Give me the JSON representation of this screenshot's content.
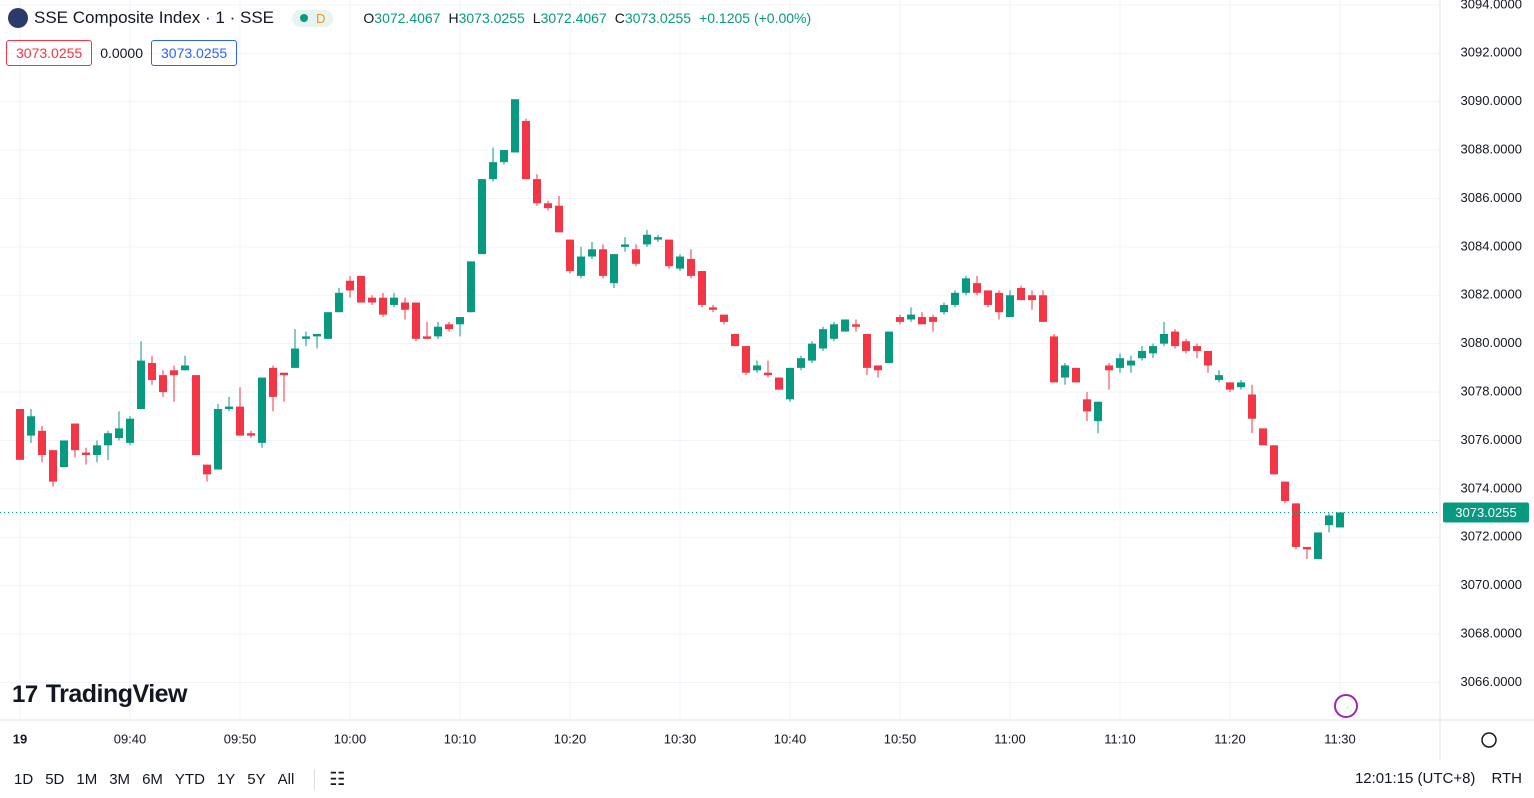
{
  "chart_data": {
    "type": "candlestick",
    "title": "SSE Composite Index · 1 · SSE",
    "status": "D",
    "legend": [
      {
        "label": "O",
        "value": 3072.4067
      },
      {
        "label": "H",
        "value": 3073.0255
      },
      {
        "label": "L",
        "value": 3072.4067
      },
      {
        "label": "C",
        "value": 3073.0255
      }
    ],
    "change_label": "+0.1205 (+0.00%)",
    "bid": "3073.0255",
    "spread": "0.0000",
    "ask": "3073.0255",
    "up_color": "#089981",
    "down_color": "#f23645",
    "x": [
      "09:30",
      "09:31",
      "09:32",
      "09:33",
      "09:34",
      "09:35",
      "09:36",
      "09:37",
      "09:38",
      "09:39",
      "09:40",
      "09:41",
      "09:42",
      "09:43",
      "09:44",
      "09:45",
      "09:46",
      "09:47",
      "09:48",
      "09:49",
      "09:50",
      "09:51",
      "09:52",
      "09:53",
      "09:54",
      "09:55",
      "09:56",
      "09:57",
      "09:58",
      "09:59",
      "10:00",
      "10:01",
      "10:02",
      "10:03",
      "10:04",
      "10:05",
      "10:06",
      "10:07",
      "10:08",
      "10:09",
      "10:10",
      "10:11",
      "10:12",
      "10:13",
      "10:14",
      "10:15",
      "10:16",
      "10:17",
      "10:18",
      "10:19",
      "10:20",
      "10:21",
      "10:22",
      "10:23",
      "10:24",
      "10:25",
      "10:26",
      "10:27",
      "10:28",
      "10:29",
      "10:30",
      "10:31",
      "10:32",
      "10:33",
      "10:34",
      "10:35",
      "10:36",
      "10:37",
      "10:38",
      "10:39",
      "10:40",
      "10:41",
      "10:42",
      "10:43",
      "10:44",
      "10:45",
      "10:46",
      "10:47",
      "10:48",
      "10:49",
      "10:50",
      "10:51",
      "10:52",
      "10:53",
      "10:54",
      "10:55",
      "10:56",
      "10:57",
      "10:58",
      "10:59",
      "11:00",
      "11:01",
      "11:02",
      "11:03",
      "11:04",
      "11:05",
      "11:06",
      "11:07",
      "11:08",
      "11:09",
      "11:10",
      "11:11",
      "11:12",
      "11:13",
      "11:14",
      "11:15",
      "11:16",
      "11:17",
      "11:18",
      "11:19",
      "11:20",
      "11:21",
      "11:22",
      "11:23",
      "11:24",
      "11:25",
      "11:26",
      "11:27",
      "11:28",
      "11:29",
      "11:30"
    ],
    "open": [
      3077.3,
      3076.2,
      3076.4,
      3075.6,
      3074.9,
      3076.7,
      3075.5,
      3075.4,
      3075.8,
      3076.1,
      3075.9,
      3077.3,
      3079.2,
      3078.7,
      3078.9,
      3078.9,
      3078.7,
      3075.0,
      3074.8,
      3077.3,
      3077.4,
      3076.3,
      3075.9,
      3079.0,
      3078.8,
      3079.0,
      3080.2,
      3080.3,
      3080.2,
      3081.3,
      3082.6,
      3082.8,
      3081.9,
      3081.9,
      3081.6,
      3081.7,
      3081.7,
      3080.3,
      3080.3,
      3080.8,
      3080.8,
      3081.3,
      3083.7,
      3086.8,
      3087.5,
      3087.9,
      3089.2,
      3086.8,
      3085.8,
      3085.7,
      3084.3,
      3082.8,
      3083.6,
      3083.9,
      3082.5,
      3084.0,
      3083.9,
      3084.1,
      3084.3,
      3084.3,
      3083.1,
      3083.5,
      3083.0,
      3081.5,
      3081.2,
      3080.4,
      3079.9,
      3078.9,
      3078.8,
      3078.6,
      3077.7,
      3079.0,
      3079.3,
      3079.8,
      3080.2,
      3080.5,
      3080.8,
      3080.4,
      3079.1,
      3079.2,
      3081.1,
      3081.0,
      3081.1,
      3081.1,
      3081.3,
      3081.6,
      3082.1,
      3082.5,
      3082.2,
      3082.1,
      3081.1,
      3082.3,
      3082.0,
      3082.0,
      3080.3,
      3078.6,
      3079.0,
      3077.7,
      3076.8,
      3079.1,
      3079.0,
      3079.1,
      3079.4,
      3079.6,
      3080.0,
      3080.5,
      3080.1,
      3079.9,
      3079.7,
      3078.5,
      3078.4,
      3078.2,
      3077.9,
      3076.5,
      3075.8,
      3074.3,
      3073.4,
      3071.6,
      3071.1,
      3072.5,
      3072.4067
    ],
    "high": [
      3077.3,
      3077.3,
      3076.6,
      3075.6,
      3076.0,
      3076.7,
      3075.7,
      3076.0,
      3076.4,
      3077.2,
      3077.0,
      3080.1,
      3079.5,
      3078.9,
      3079.1,
      3079.5,
      3078.7,
      3075.0,
      3077.5,
      3077.8,
      3078.2,
      3076.4,
      3078.6,
      3079.1,
      3078.8,
      3080.6,
      3080.5,
      3080.4,
      3081.3,
      3082.3,
      3082.8,
      3082.8,
      3082.0,
      3082.1,
      3082.1,
      3081.9,
      3081.7,
      3080.9,
      3080.9,
      3080.9,
      3081.1,
      3083.4,
      3086.8,
      3088.1,
      3088.0,
      3090.1,
      3089.3,
      3087.0,
      3085.9,
      3086.1,
      3084.3,
      3084.0,
      3084.2,
      3084.1,
      3083.7,
      3084.4,
      3084.1,
      3084.7,
      3084.5,
      3084.3,
      3083.7,
      3083.9,
      3083.0,
      3081.6,
      3081.2,
      3080.4,
      3079.9,
      3079.3,
      3079.3,
      3078.6,
      3079.0,
      3079.5,
      3080.1,
      3080.7,
      3080.9,
      3081.0,
      3081.0,
      3080.4,
      3079.1,
      3080.5,
      3081.2,
      3081.5,
      3081.3,
      3081.2,
      3081.7,
      3082.2,
      3082.8,
      3082.8,
      3082.2,
      3082.2,
      3082.2,
      3082.4,
      3082.2,
      3082.2,
      3080.4,
      3079.2,
      3079.0,
      3078.0,
      3077.6,
      3079.2,
      3079.6,
      3079.5,
      3079.9,
      3080.0,
      3080.9,
      3080.6,
      3080.2,
      3080.0,
      3079.7,
      3078.9,
      3078.4,
      3078.5,
      3078.3,
      3076.5,
      3075.8,
      3074.3,
      3073.4,
      3071.6,
      3072.2,
      3073.0,
      3073.0255
    ],
    "low": [
      3075.2,
      3075.9,
      3075.1,
      3074.1,
      3074.9,
      3075.3,
      3075.0,
      3075.1,
      3075.2,
      3076.0,
      3075.8,
      3077.3,
      3078.3,
      3077.8,
      3077.6,
      3078.9,
      3075.4,
      3074.3,
      3074.8,
      3077.2,
      3076.2,
      3076.1,
      3075.7,
      3077.2,
      3077.6,
      3079.0,
      3079.9,
      3079.8,
      3080.2,
      3081.3,
      3081.9,
      3081.7,
      3081.6,
      3081.1,
      3081.5,
      3081.0,
      3080.1,
      3080.2,
      3080.2,
      3080.5,
      3080.3,
      3081.3,
      3083.7,
      3086.7,
      3087.4,
      3087.9,
      3086.8,
      3085.7,
      3085.5,
      3084.6,
      3082.9,
      3082.7,
      3083.5,
      3082.7,
      3082.3,
      3083.8,
      3083.2,
      3084.0,
      3084.2,
      3083.1,
      3083.0,
      3082.7,
      3081.5,
      3081.3,
      3080.8,
      3079.9,
      3078.7,
      3078.8,
      3078.6,
      3078.1,
      3077.6,
      3078.9,
      3079.2,
      3079.7,
      3080.1,
      3080.5,
      3080.5,
      3078.7,
      3078.6,
      3079.2,
      3080.8,
      3080.9,
      3080.8,
      3080.5,
      3081.2,
      3081.5,
      3082.0,
      3082.0,
      3081.5,
      3081.0,
      3081.1,
      3081.8,
      3081.4,
      3080.9,
      3078.4,
      3078.3,
      3078.4,
      3076.8,
      3076.3,
      3078.1,
      3078.8,
      3078.8,
      3079.3,
      3079.4,
      3079.9,
      3079.8,
      3079.6,
      3079.4,
      3078.8,
      3078.4,
      3078.0,
      3078.1,
      3076.3,
      3075.8,
      3074.6,
      3073.4,
      3071.5,
      3071.1,
      3071.1,
      3072.2,
      3072.4067
    ],
    "close": [
      3075.2,
      3077.0,
      3075.4,
      3074.3,
      3076.0,
      3075.6,
      3075.4,
      3075.8,
      3076.3,
      3076.5,
      3076.9,
      3079.3,
      3078.5,
      3078.0,
      3078.7,
      3079.1,
      3075.4,
      3074.6,
      3077.3,
      3077.4,
      3076.2,
      3076.2,
      3078.6,
      3077.8,
      3078.7,
      3079.8,
      3080.3,
      3080.4,
      3081.3,
      3082.1,
      3082.2,
      3081.7,
      3081.7,
      3081.2,
      3081.9,
      3081.4,
      3080.2,
      3080.2,
      3080.7,
      3080.6,
      3081.1,
      3083.4,
      3086.8,
      3087.5,
      3088.0,
      3090.1,
      3086.8,
      3085.8,
      3085.6,
      3084.6,
      3083.0,
      3083.6,
      3083.9,
      3082.8,
      3083.7,
      3084.1,
      3083.3,
      3084.5,
      3084.4,
      3083.2,
      3083.6,
      3082.8,
      3081.6,
      3081.4,
      3080.9,
      3079.9,
      3078.8,
      3079.1,
      3078.7,
      3078.1,
      3079.0,
      3079.4,
      3080.0,
      3080.6,
      3080.8,
      3081.0,
      3080.7,
      3079.0,
      3078.9,
      3080.5,
      3080.9,
      3081.2,
      3080.8,
      3080.9,
      3081.6,
      3082.1,
      3082.7,
      3082.1,
      3081.6,
      3081.3,
      3082.0,
      3081.8,
      3081.8,
      3080.9,
      3078.4,
      3079.1,
      3078.4,
      3077.2,
      3077.6,
      3078.9,
      3079.4,
      3079.3,
      3079.7,
      3079.9,
      3080.4,
      3079.9,
      3079.7,
      3079.7,
      3079.1,
      3078.7,
      3078.1,
      3078.4,
      3076.9,
      3075.8,
      3074.6,
      3073.5,
      3071.6,
      3071.5,
      3072.2,
      3072.9,
      3073.0255
    ],
    "last_price": 3073.0255,
    "ylim": [
      3064.45,
      3094.2
    ],
    "yticks": [
      {
        "value": 3066,
        "label": "3066.0000"
      },
      {
        "value": 3068,
        "label": "3068.0000"
      },
      {
        "value": 3070,
        "label": "3070.0000"
      },
      {
        "value": 3072,
        "label": "3072.0000"
      },
      {
        "value": 3074,
        "label": "3074.0000"
      },
      {
        "value": 3076,
        "label": "3076.0000"
      },
      {
        "value": 3078,
        "label": "3078.0000"
      },
      {
        "value": 3080,
        "label": "3080.0000"
      },
      {
        "value": 3082,
        "label": "3082.0000"
      },
      {
        "value": 3084,
        "label": "3084.0000"
      },
      {
        "value": 3086,
        "label": "3086.0000"
      },
      {
        "value": 3088,
        "label": "3088.0000"
      },
      {
        "value": 3090,
        "label": "3090.0000"
      },
      {
        "value": 3092,
        "label": "3092.0000"
      },
      {
        "value": 3094,
        "label": "3094.0000"
      }
    ],
    "xticks": [
      {
        "value": "09:30",
        "label": "19"
      },
      "09:40",
      "09:50",
      "10:00",
      "10:10",
      "10:20",
      "10:30",
      "10:40",
      "10:50",
      "11:00",
      "11:10",
      "11:20",
      "11:30"
    ],
    "grid": true,
    "brand": "TradingView",
    "ranges": [
      "1D",
      "5D",
      "1M",
      "3M",
      "6M",
      "YTD",
      "1Y",
      "5Y",
      "All"
    ],
    "clock": "12:01:15 (UTC+8)",
    "session": "RTH"
  }
}
